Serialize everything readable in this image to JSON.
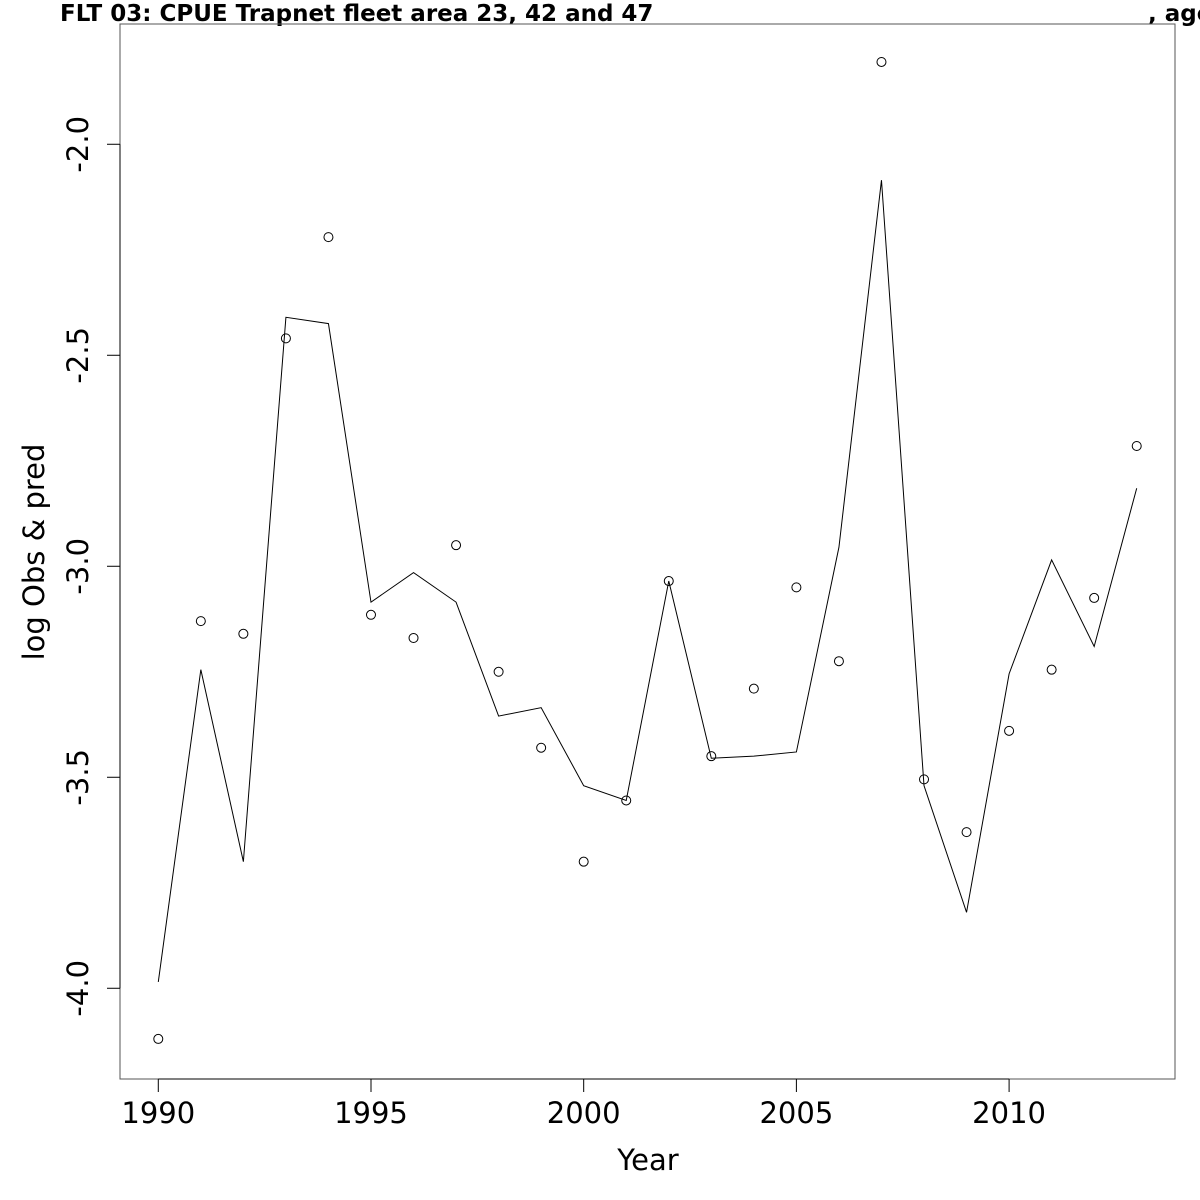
{
  "chart_data": {
    "type": "line",
    "title": "FLT 03: CPUE Trapnet fleet area 23, 42 and 47",
    "title_suffix": ", age",
    "xlabel": "Year",
    "ylabel": "log Obs & pred",
    "xlim": [
      1989.1,
      2013.9
    ],
    "ylim": [
      -4.215,
      -1.715
    ],
    "x_ticks": [
      1990,
      1995,
      2000,
      2005,
      2010
    ],
    "x_tick_labels": [
      "1990",
      "1995",
      "2000",
      "2005",
      "2010"
    ],
    "y_ticks": [
      -4.0,
      -3.5,
      -3.0,
      -2.5,
      -2.0
    ],
    "y_tick_labels": [
      "-4.0",
      "-3.5",
      "-3.0",
      "-2.5",
      "-2.0"
    ],
    "grid": false,
    "x": [
      1990,
      1991,
      1992,
      1993,
      1994,
      1995,
      1996,
      1997,
      1998,
      1999,
      2000,
      2001,
      2002,
      2003,
      2004,
      2005,
      2006,
      2007,
      2008,
      2009,
      2010,
      2011,
      2012,
      2013
    ],
    "series": [
      {
        "name": "",
        "style": "points",
        "values": [
          -4.12,
          -3.13,
          -3.16,
          -2.46,
          -2.22,
          -3.115,
          -3.17,
          -2.95,
          -3.25,
          -3.43,
          -3.7,
          -3.555,
          -3.035,
          -3.45,
          -3.29,
          -3.05,
          -3.225,
          -1.805,
          -3.505,
          -3.63,
          -3.39,
          -3.245,
          -3.075,
          -2.715
        ]
      },
      {
        "name": "",
        "style": "line",
        "values": [
          -3.985,
          -3.245,
          -3.7,
          -2.41,
          -2.425,
          -3.085,
          -3.015,
          -3.085,
          -3.355,
          -3.335,
          -3.52,
          -3.555,
          -3.035,
          -3.455,
          -3.45,
          -3.44,
          -2.955,
          -2.085,
          -3.52,
          -3.82,
          -3.255,
          -2.985,
          -3.19,
          -2.815
        ]
      }
    ]
  }
}
